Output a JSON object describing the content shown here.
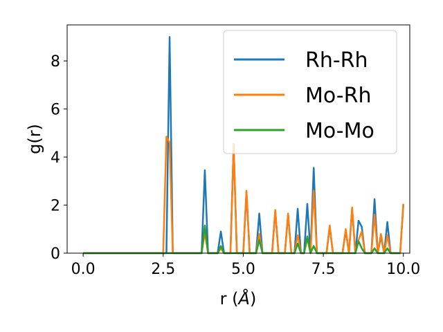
{
  "chart_data": {
    "type": "line",
    "title": "",
    "xlabel": "r (",
    "xlabel_unit": "Å",
    "xlabel_close": ")",
    "ylabel": "g(r)",
    "xlim": [
      -0.5,
      10.2
    ],
    "ylim": [
      0,
      9.5
    ],
    "xticks": [
      0.0,
      2.5,
      5.0,
      7.5,
      10.0
    ],
    "xtick_labels": [
      "0.0",
      "2.5",
      "5.0",
      "7.5",
      "10.0"
    ],
    "yticks": [
      0,
      2,
      4,
      6,
      8
    ],
    "ytick_labels": [
      "0",
      "2",
      "4",
      "6",
      "8"
    ],
    "grid": false,
    "legend_position": "top-right",
    "series": [
      {
        "name": "Rh-Rh",
        "color": "#1f77b4",
        "points": [
          [
            0.0,
            0
          ],
          [
            2.6,
            0
          ],
          [
            2.7,
            9.0
          ],
          [
            2.8,
            0
          ],
          [
            3.7,
            0
          ],
          [
            3.8,
            3.45
          ],
          [
            3.9,
            0
          ],
          [
            4.2,
            0
          ],
          [
            4.3,
            0.9
          ],
          [
            4.4,
            0
          ],
          [
            4.6,
            0
          ],
          [
            4.7,
            4.5
          ],
          [
            4.8,
            0
          ],
          [
            5.0,
            0
          ],
          [
            5.1,
            2.55
          ],
          [
            5.2,
            0
          ],
          [
            5.4,
            0
          ],
          [
            5.5,
            1.65
          ],
          [
            5.6,
            0
          ],
          [
            5.9,
            0
          ],
          [
            6.0,
            1.75
          ],
          [
            6.1,
            0
          ],
          [
            6.3,
            0
          ],
          [
            6.4,
            1.6
          ],
          [
            6.5,
            0
          ],
          [
            6.6,
            0
          ],
          [
            6.7,
            1.85
          ],
          [
            6.8,
            0
          ],
          [
            6.9,
            0
          ],
          [
            7.0,
            2.05
          ],
          [
            7.1,
            0
          ],
          [
            7.2,
            3.55
          ],
          [
            7.3,
            0
          ],
          [
            7.6,
            0
          ],
          [
            7.7,
            1.1
          ],
          [
            7.8,
            0
          ],
          [
            8.1,
            0
          ],
          [
            8.2,
            0.95
          ],
          [
            8.3,
            0
          ],
          [
            8.4,
            1.85
          ],
          [
            8.5,
            0
          ],
          [
            8.6,
            1.35
          ],
          [
            8.7,
            1.1
          ],
          [
            8.8,
            0
          ],
          [
            9.0,
            0
          ],
          [
            9.1,
            2.25
          ],
          [
            9.2,
            0
          ],
          [
            9.3,
            0.7
          ],
          [
            9.4,
            0
          ],
          [
            9.5,
            1.3
          ],
          [
            9.6,
            0
          ],
          [
            9.9,
            0
          ],
          [
            10.0,
            2.05
          ]
        ]
      },
      {
        "name": "Mo-Rh",
        "color": "#ff7f0e",
        "points": [
          [
            0.0,
            0
          ],
          [
            2.5,
            0
          ],
          [
            2.6,
            4.85
          ],
          [
            2.7,
            4.6
          ],
          [
            2.8,
            0
          ],
          [
            3.7,
            0
          ],
          [
            3.8,
            0.85
          ],
          [
            3.9,
            0
          ],
          [
            4.2,
            0
          ],
          [
            4.3,
            0.2
          ],
          [
            4.4,
            0
          ],
          [
            4.6,
            0
          ],
          [
            4.7,
            4.55
          ],
          [
            4.8,
            0
          ],
          [
            5.0,
            0
          ],
          [
            5.1,
            2.6
          ],
          [
            5.2,
            0
          ],
          [
            5.4,
            0
          ],
          [
            5.5,
            0.8
          ],
          [
            5.6,
            0
          ],
          [
            5.9,
            0
          ],
          [
            6.0,
            1.8
          ],
          [
            6.1,
            0
          ],
          [
            6.3,
            0
          ],
          [
            6.4,
            1.65
          ],
          [
            6.5,
            0
          ],
          [
            6.6,
            0
          ],
          [
            6.7,
            0.75
          ],
          [
            6.8,
            0
          ],
          [
            6.9,
            0
          ],
          [
            7.0,
            0.6
          ],
          [
            7.1,
            0
          ],
          [
            7.2,
            2.6
          ],
          [
            7.3,
            0
          ],
          [
            7.6,
            0
          ],
          [
            7.7,
            1.15
          ],
          [
            7.8,
            0
          ],
          [
            8.1,
            0
          ],
          [
            8.2,
            1.0
          ],
          [
            8.3,
            0
          ],
          [
            8.4,
            1.9
          ],
          [
            8.5,
            0
          ],
          [
            8.6,
            0.55
          ],
          [
            8.7,
            0.9
          ],
          [
            8.8,
            0
          ],
          [
            9.0,
            0
          ],
          [
            9.1,
            1.6
          ],
          [
            9.2,
            0
          ],
          [
            9.3,
            0.8
          ],
          [
            9.4,
            0
          ],
          [
            9.5,
            0.75
          ],
          [
            9.6,
            0
          ],
          [
            9.9,
            0
          ],
          [
            10.0,
            2.05
          ]
        ]
      },
      {
        "name": "Mo-Mo",
        "color": "#2ca02c",
        "points": [
          [
            0.0,
            0
          ],
          [
            3.7,
            0
          ],
          [
            3.8,
            1.15
          ],
          [
            3.9,
            0
          ],
          [
            4.2,
            0
          ],
          [
            4.3,
            0.3
          ],
          [
            4.4,
            0
          ],
          [
            5.4,
            0
          ],
          [
            5.5,
            0.55
          ],
          [
            5.6,
            0
          ],
          [
            6.6,
            0
          ],
          [
            6.7,
            0.4
          ],
          [
            6.8,
            0
          ],
          [
            6.9,
            0
          ],
          [
            7.0,
            0.7
          ],
          [
            7.1,
            0
          ],
          [
            7.2,
            0.3
          ],
          [
            7.3,
            0
          ],
          [
            8.5,
            0
          ],
          [
            8.6,
            0.5
          ],
          [
            8.7,
            0.2
          ],
          [
            8.8,
            0
          ],
          [
            9.0,
            0
          ],
          [
            9.1,
            0.2
          ],
          [
            9.2,
            0
          ],
          [
            9.4,
            0
          ],
          [
            9.5,
            0.2
          ],
          [
            9.6,
            0
          ],
          [
            9.9,
            0
          ]
        ]
      }
    ]
  }
}
